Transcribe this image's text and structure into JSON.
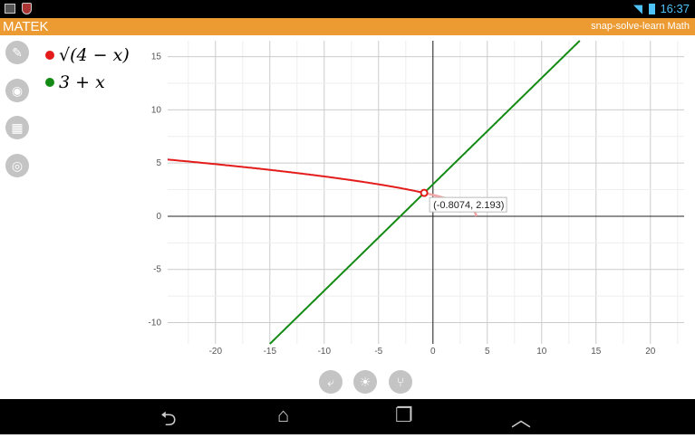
{
  "status_bar": {
    "time": "16:37"
  },
  "header": {
    "title": "MATEK",
    "tagline": "snap-solve-learn Math"
  },
  "sidebar": [
    {
      "icon": "pencil-icon"
    },
    {
      "icon": "camera-icon"
    },
    {
      "icon": "keyboard-icon"
    },
    {
      "icon": "settings-icon"
    }
  ],
  "functions": [
    {
      "label": "√(4 − x)",
      "color": "#e31b1b"
    },
    {
      "label": "3 + x",
      "color": "#138a13"
    }
  ],
  "chart_data": {
    "type": "line",
    "xlim": [
      -24.4,
      23.1
    ],
    "ylim": [
      -12,
      16.5
    ],
    "x_ticks": [
      -20,
      -15,
      -10,
      -5,
      0,
      5,
      10,
      15,
      20
    ],
    "y_ticks": [
      -10,
      -5,
      0,
      5,
      10,
      15
    ],
    "grid": true,
    "series": [
      {
        "expr": "sqrt(4-x)",
        "domain": [
          -24.4,
          4
        ],
        "color": "#e31b1b"
      },
      {
        "expr": "3+x",
        "domain": [
          -15,
          13.5
        ],
        "color": "#138a13"
      }
    ],
    "intersection": {
      "x": -0.8074,
      "y": 2.193,
      "label": "(-0.8074, 2.193)"
    }
  },
  "bottom_buttons": [
    {
      "icon": "undo-icon"
    },
    {
      "icon": "lightbulb-icon"
    },
    {
      "icon": "share-icon"
    }
  ],
  "nav": {
    "back": "⮌",
    "home": "⌂",
    "recents": "❐",
    "menu": "︿"
  }
}
